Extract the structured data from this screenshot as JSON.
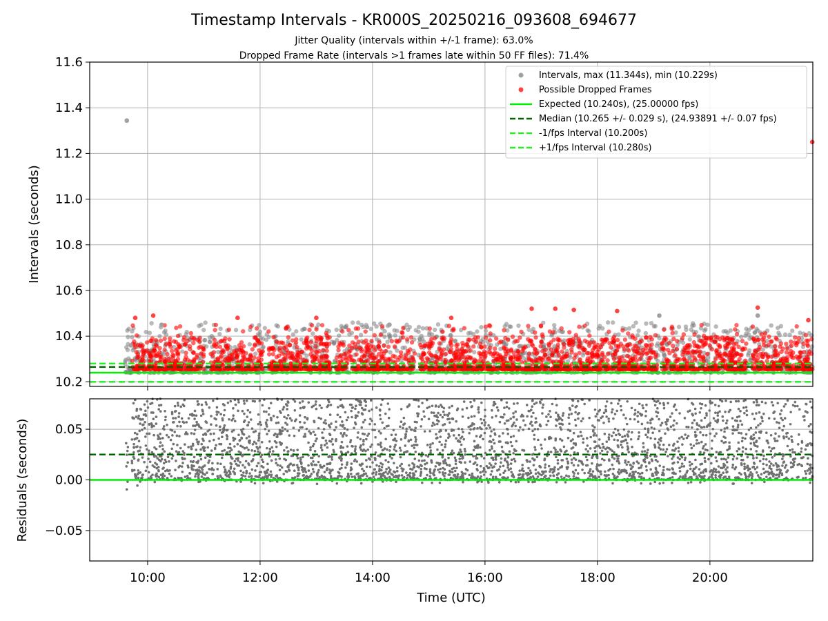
{
  "title": "Timestamp Intervals - KR000S_20250216_093608_694677",
  "subtitle_lines": [
    "Jitter Quality (intervals within +/-1 frame): 63.0%",
    "Dropped Frame Rate (intervals >1 frames late within 50 FF files): 71.4%"
  ],
  "colors": {
    "intervals": "#808080",
    "dropped": "#ff0000",
    "expected": "#00ee00",
    "median": "#006400",
    "fps_interval": "#22ee22",
    "grid": "#b0b0b0",
    "residual_points": "#707070"
  },
  "chart_data": [
    {
      "type": "scatter",
      "name": "intervals-panel",
      "ylabel": "Intervals (seconds)",
      "xlabel": "",
      "xlim_hours": [
        8.97,
        21.83
      ],
      "ylim": [
        10.18,
        11.6
      ],
      "yticks": [
        10.2,
        10.4,
        10.6,
        10.8,
        11.0,
        11.2,
        11.4,
        11.6
      ],
      "ytick_labels": [
        "10.2",
        "10.4",
        "10.6",
        "10.8",
        "11.0",
        "11.2",
        "11.4",
        "11.6"
      ],
      "xticks_hours": [
        10,
        12,
        14,
        16,
        18,
        20
      ],
      "grid": true,
      "legend_position": "top-right",
      "legend": [
        {
          "label": "Intervals, max (11.344s), min (10.229s)",
          "kind": "marker",
          "color": "#a0a0a0"
        },
        {
          "label": "Possible Dropped Frames",
          "kind": "marker",
          "color": "#ff4444"
        },
        {
          "label": "Expected (10.240s), (25.00000 fps)",
          "kind": "solid",
          "color": "#00ee00"
        },
        {
          "label": "Median (10.265 +/- 0.029 s), (24.93891 +/- 0.07 fps)",
          "kind": "dashed",
          "color": "#006400"
        },
        {
          "label": "-1/fps Interval (10.200s)",
          "kind": "dashed",
          "color": "#22ee22"
        },
        {
          "label": "+1/fps Interval (10.280s)",
          "kind": "dashed",
          "color": "#22ee22"
        }
      ],
      "hlines": [
        {
          "name": "Expected",
          "y": 10.24,
          "style": "solid",
          "color": "#00ee00"
        },
        {
          "name": "Median",
          "y": 10.265,
          "style": "dashed",
          "color": "#006400"
        },
        {
          "name": "-1/fps Interval",
          "y": 10.2,
          "style": "dashed",
          "color": "#22ee22"
        },
        {
          "name": "+1/fps Interval",
          "y": 10.28,
          "style": "dashed",
          "color": "#22ee22"
        }
      ],
      "interval_range": {
        "max": 11.344,
        "min": 10.229
      },
      "time_range_hours": [
        9.6,
        21.83
      ],
      "series": [
        {
          "name": "Intervals",
          "type": "scatter",
          "color": "#a0a0a0",
          "note_points": [
            [
              9.63,
              11.344
            ],
            [
              19.1,
              10.49
            ],
            [
              20.85,
              10.49
            ],
            [
              14.3,
              10.45
            ],
            [
              13.9,
              10.44
            ],
            [
              9.7,
              10.36
            ],
            [
              10.25,
              10.45
            ]
          ]
        },
        {
          "name": "Possible Dropped Frames",
          "type": "scatter",
          "color": "#ff4444",
          "note_points": [
            [
              9.78,
              10.48
            ],
            [
              10.1,
              10.49
            ],
            [
              11.6,
              10.48
            ],
            [
              13.0,
              10.48
            ],
            [
              15.4,
              10.48
            ],
            [
              16.83,
              10.52
            ],
            [
              17.25,
              10.52
            ],
            [
              17.58,
              10.515
            ],
            [
              18.35,
              10.51
            ],
            [
              20.85,
              10.525
            ],
            [
              21.82,
              11.25
            ],
            [
              21.75,
              10.47
            ]
          ]
        }
      ]
    },
    {
      "type": "scatter",
      "name": "residuals-panel",
      "ylabel": "Residuals (seconds)",
      "xlabel": "Time (UTC)",
      "xlim_hours": [
        8.97,
        21.83
      ],
      "ylim": [
        -0.08,
        0.08
      ],
      "yticks": [
        -0.05,
        0.0,
        0.05
      ],
      "ytick_labels": [
        "−0.05",
        "0.00",
        "0.05"
      ],
      "xticks_hours": [
        10,
        12,
        14,
        16,
        18,
        20
      ],
      "xtick_labels": [
        "10:00",
        "12:00",
        "14:00",
        "16:00",
        "18:00",
        "20:00"
      ],
      "grid": true,
      "hlines": [
        {
          "name": "Expected",
          "y": 0.0,
          "style": "solid",
          "color": "#00ee00"
        },
        {
          "name": "Median",
          "y": 0.025,
          "style": "dashed",
          "color": "#006400"
        }
      ],
      "series": [
        {
          "name": "Residuals",
          "type": "scatter",
          "color": "#707070",
          "residual_range": [
            -0.012,
            0.08
          ]
        }
      ]
    }
  ]
}
